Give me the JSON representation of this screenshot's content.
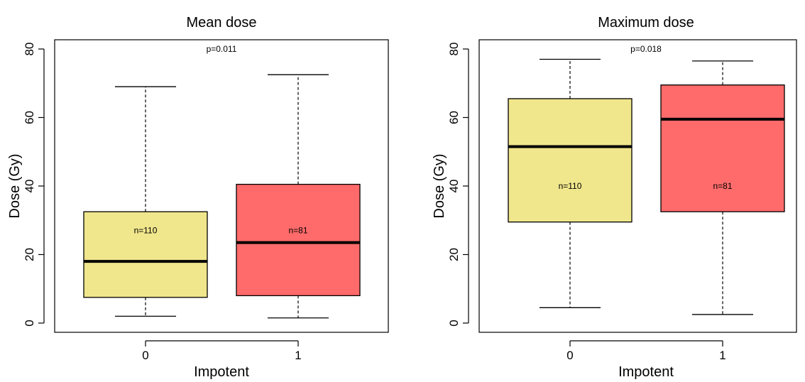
{
  "chart_data": [
    {
      "type": "box",
      "title": "Mean dose",
      "xlabel": "Impotent",
      "ylabel": "Dose (Gy)",
      "ylim": [
        0,
        80
      ],
      "yticks": [
        0,
        20,
        40,
        60,
        80
      ],
      "annotation": "p=0.011",
      "boxes": [
        {
          "category": "0",
          "whisker_low": 2,
          "q1": 7.5,
          "median": 18,
          "q3": 32.5,
          "whisker_high": 69,
          "n_label": "n=110",
          "color": "#F0E68C"
        },
        {
          "category": "1",
          "whisker_low": 1.5,
          "q1": 8,
          "median": 23.5,
          "q3": 40.5,
          "whisker_high": 72.5,
          "n_label": "n=81",
          "color": "#FF6A6A"
        }
      ]
    },
    {
      "type": "box",
      "title": "Maximum dose",
      "xlabel": "Impotent",
      "ylabel": "Dose (Gy)",
      "ylim": [
        0,
        80
      ],
      "yticks": [
        0,
        20,
        40,
        60,
        80
      ],
      "annotation": "p=0.018",
      "boxes": [
        {
          "category": "0",
          "whisker_low": 4.5,
          "q1": 29.5,
          "median": 51.5,
          "q3": 65.5,
          "whisker_high": 77,
          "n_label": "n=110",
          "color": "#F0E68C"
        },
        {
          "category": "1",
          "whisker_low": 2.5,
          "q1": 32.5,
          "median": 59.5,
          "q3": 69.5,
          "whisker_high": 76.5,
          "n_label": "n=81",
          "color": "#FF6A6A"
        }
      ]
    }
  ]
}
